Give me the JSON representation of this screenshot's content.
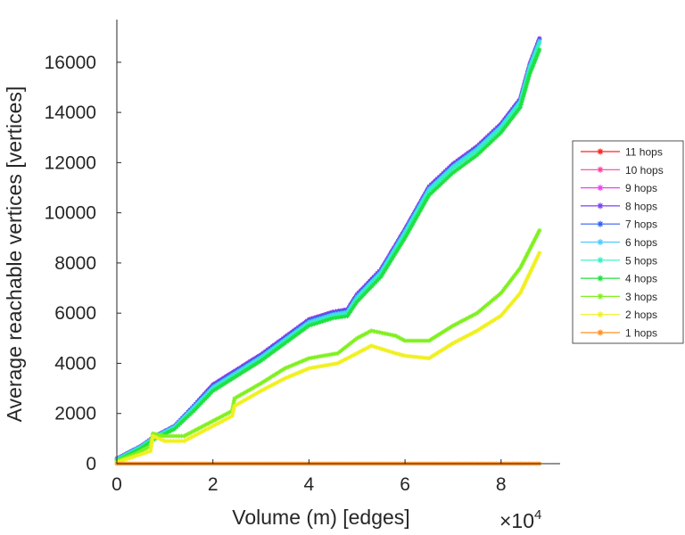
{
  "chart_data": {
    "type": "line",
    "xlabel": "Volume (m) [edges]",
    "ylabel": "Average reachable vertices [vertices]",
    "x_multiplier_label": "×10",
    "x_multiplier_exponent": "4",
    "xlim": [
      0,
      9.23
    ],
    "ylim": [
      0,
      17700
    ],
    "xticks": [
      0,
      2,
      4,
      6,
      8
    ],
    "xtick_labels": [
      "0",
      "2",
      "4",
      "6",
      "8"
    ],
    "yticks": [
      0,
      2000,
      4000,
      6000,
      8000,
      10000,
      12000,
      14000,
      16000
    ],
    "ytick_labels": [
      "0",
      "2000",
      "4000",
      "6000",
      "8000",
      "10000",
      "12000",
      "14000",
      "16000"
    ],
    "grid": false,
    "legend_position": "outside-right",
    "series": [
      {
        "name": "11 hops",
        "color": "#ff2020",
        "x": [
          0,
          0.5,
          0.8,
          1.2,
          1.6,
          2,
          2.5,
          3,
          3.5,
          4,
          4.5,
          4.8,
          5,
          5.5,
          6,
          6.5,
          7,
          7.5,
          8,
          8.4,
          8.6,
          8.8
        ],
        "y": [
          200,
          700,
          1100,
          1500,
          2300,
          3150,
          3750,
          4350,
          5050,
          5750,
          6050,
          6150,
          6750,
          7750,
          9350,
          11050,
          11950,
          12650,
          13550,
          14550,
          15950,
          16950
        ]
      },
      {
        "name": "10 hops",
        "color": "#ff3fa0",
        "x": [
          0,
          0.5,
          0.8,
          1.2,
          1.6,
          2,
          2.5,
          3,
          3.5,
          4,
          4.5,
          4.8,
          5,
          5.5,
          6,
          6.5,
          7,
          7.5,
          8,
          8.4,
          8.6,
          8.8
        ],
        "y": [
          200,
          700,
          1100,
          1500,
          2300,
          3150,
          3750,
          4350,
          5050,
          5750,
          6050,
          6150,
          6750,
          7750,
          9350,
          11050,
          11950,
          12650,
          13550,
          14550,
          15950,
          16950
        ]
      },
      {
        "name": "9 hops",
        "color": "#f040f0",
        "x": [
          0,
          0.5,
          0.8,
          1.2,
          1.6,
          2,
          2.5,
          3,
          3.5,
          4,
          4.5,
          4.8,
          5,
          5.5,
          6,
          6.5,
          7,
          7.5,
          8,
          8.4,
          8.6,
          8.8
        ],
        "y": [
          200,
          700,
          1100,
          1500,
          2300,
          3150,
          3750,
          4350,
          5050,
          5750,
          6050,
          6150,
          6750,
          7750,
          9350,
          11050,
          11950,
          12650,
          13550,
          14550,
          15950,
          16950
        ]
      },
      {
        "name": "8 hops",
        "color": "#7a40f0",
        "x": [
          0,
          0.5,
          0.8,
          1.2,
          1.6,
          2,
          2.5,
          3,
          3.5,
          4,
          4.5,
          4.8,
          5,
          5.5,
          6,
          6.5,
          7,
          7.5,
          8,
          8.4,
          8.6,
          8.8
        ],
        "y": [
          200,
          700,
          1100,
          1500,
          2300,
          3150,
          3750,
          4350,
          5050,
          5750,
          6050,
          6150,
          6750,
          7750,
          9350,
          11050,
          11950,
          12650,
          13550,
          14550,
          15950,
          16950
        ]
      },
      {
        "name": "7 hops",
        "color": "#3060f0",
        "x": [
          0,
          0.5,
          0.8,
          1.2,
          1.6,
          2,
          2.5,
          3,
          3.5,
          4,
          4.5,
          4.8,
          5,
          5.5,
          6,
          6.5,
          7,
          7.5,
          8,
          8.4,
          8.6,
          8.8
        ],
        "y": [
          200,
          700,
          1100,
          1500,
          2300,
          3100,
          3700,
          4300,
          5000,
          5700,
          6000,
          6100,
          6700,
          7700,
          9300,
          11000,
          11900,
          12600,
          13500,
          14500,
          15900,
          16900
        ]
      },
      {
        "name": "6 hops",
        "color": "#50c8ff",
        "x": [
          0,
          0.5,
          0.8,
          1.2,
          1.6,
          2,
          2.5,
          3,
          3.5,
          4,
          4.5,
          4.8,
          5,
          5.5,
          6,
          6.5,
          7,
          7.5,
          8,
          8.4,
          8.6,
          8.8
        ],
        "y": [
          180,
          680,
          1080,
          1470,
          2250,
          3050,
          3650,
          4250,
          4950,
          5650,
          5950,
          6050,
          6650,
          7650,
          9250,
          10950,
          11850,
          12550,
          13450,
          14450,
          15850,
          16850
        ]
      },
      {
        "name": "5 hops",
        "color": "#30f0c0",
        "x": [
          0,
          0.5,
          0.8,
          1.2,
          1.6,
          2,
          2.5,
          3,
          3.5,
          4,
          4.5,
          4.8,
          5,
          5.5,
          6,
          6.5,
          7,
          7.5,
          8,
          8.4,
          8.6,
          8.8
        ],
        "y": [
          150,
          650,
          1050,
          1430,
          2180,
          2980,
          3580,
          4180,
          4880,
          5580,
          5880,
          5980,
          6580,
          7580,
          9180,
          10880,
          11780,
          12480,
          13380,
          14380,
          15780,
          16780
        ]
      },
      {
        "name": "4 hops",
        "color": "#20e040",
        "x": [
          0,
          0.5,
          0.8,
          1.2,
          1.6,
          2,
          2.5,
          3,
          3.5,
          4,
          4.5,
          4.8,
          5,
          5.5,
          6,
          6.5,
          7,
          7.5,
          8,
          8.4,
          8.6,
          8.8
        ],
        "y": [
          120,
          600,
          1000,
          1380,
          2100,
          2900,
          3500,
          4100,
          4800,
          5500,
          5800,
          5880,
          6450,
          7450,
          9000,
          10700,
          11600,
          12300,
          13200,
          14200,
          15550,
          16500
        ]
      },
      {
        "name": "3 hops",
        "color": "#80f020",
        "x": [
          0,
          0.4,
          0.7,
          0.75,
          1,
          1.4,
          2,
          2.4,
          2.45,
          3,
          3.5,
          4,
          4.6,
          5,
          5.3,
          5.8,
          6,
          6.5,
          7,
          7.5,
          8,
          8.4,
          8.8
        ],
        "y": [
          100,
          400,
          700,
          1200,
          1100,
          1100,
          1700,
          2100,
          2600,
          3200,
          3800,
          4200,
          4400,
          5000,
          5300,
          5100,
          4900,
          4900,
          5500,
          6000,
          6800,
          7800,
          9300
        ]
      },
      {
        "name": "2 hops",
        "color": "#f0f020",
        "x": [
          0,
          0.7,
          0.75,
          1,
          1.4,
          2,
          2.4,
          2.45,
          3,
          3.5,
          4,
          4.6,
          5,
          5.3,
          5.8,
          6,
          6.5,
          7,
          7.5,
          8,
          8.4,
          8.8
        ],
        "y": [
          50,
          500,
          1100,
          900,
          900,
          1500,
          1900,
          2300,
          2900,
          3400,
          3800,
          4000,
          4400,
          4700,
          4400,
          4300,
          4200,
          4800,
          5300,
          5900,
          6800,
          8400
        ]
      },
      {
        "name": "1 hops",
        "color": "#ff9020",
        "x": [
          0,
          8.8
        ],
        "y": [
          0,
          0
        ]
      }
    ]
  }
}
